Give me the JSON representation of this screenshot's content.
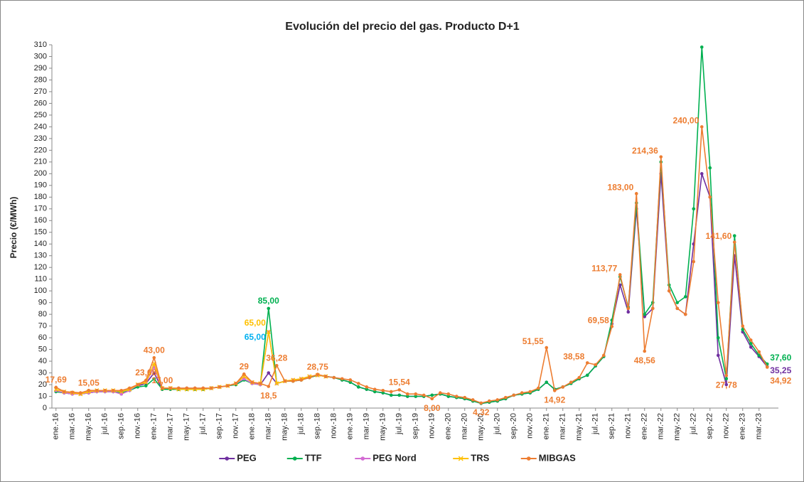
{
  "chart_data": {
    "type": "line",
    "title": "Evolución del precio del gas. Producto D+1",
    "y_label": "Precio (€/MWh)",
    "legend": "bottom",
    "grid": false,
    "ylim": [
      0,
      310
    ],
    "yticks": [
      0,
      10,
      20,
      30,
      40,
      50,
      60,
      70,
      80,
      90,
      100,
      110,
      120,
      130,
      140,
      150,
      160,
      170,
      180,
      190,
      200,
      210,
      220,
      230,
      240,
      250,
      260,
      270,
      280,
      290,
      300,
      310
    ],
    "categories": [
      "ene.-16",
      null,
      "mar.-16",
      null,
      "may.-16",
      null,
      "jul.-16",
      null,
      "sep.-16",
      null,
      "nov.-16",
      null,
      "ene.-17",
      null,
      "mar.-17",
      null,
      "may.-17",
      null,
      "jul.-17",
      null,
      "sep.-17",
      null,
      "nov.-17",
      null,
      "ene.-18",
      null,
      "mar.-18",
      null,
      "may.-18",
      null,
      "jul.-18",
      null,
      "sep.-18",
      null,
      "nov.-18",
      null,
      "ene.-19",
      null,
      "mar.-19",
      null,
      "may.-19",
      null,
      "jul.-19",
      null,
      "sep.-19",
      null,
      "nov.-19",
      null,
      "ene.-20",
      null,
      "mar.-20",
      null,
      "may.-20",
      null,
      "jul.-20",
      null,
      "sep.-20",
      null,
      "nov.-20",
      null,
      "ene.-21",
      null,
      "mar.-21",
      null,
      "may.-21",
      null,
      "jul.-21",
      null,
      "sep.-21",
      null,
      "nov.-21",
      null,
      "ene.-22",
      null,
      "mar.-22",
      null,
      "may.-22",
      null,
      "jul.-22",
      null,
      "sep.-22",
      null,
      "nov.-22",
      null,
      "ene.-23",
      null,
      "mar.-23",
      null
    ],
    "series": [
      {
        "name": "PEG",
        "color": "#7030a0",
        "marker": "circle",
        "values": [
          14,
          13,
          12,
          12,
          13,
          14,
          14,
          14,
          12,
          15,
          19,
          21,
          30,
          16,
          16,
          16,
          16,
          16,
          16,
          17,
          18,
          19,
          20,
          25,
          21,
          20,
          30,
          21,
          23,
          23,
          24,
          26,
          28,
          27,
          26,
          24,
          22,
          18,
          16,
          14,
          13,
          11,
          11,
          10,
          10,
          10,
          11,
          12,
          10,
          9,
          8,
          6,
          4,
          5,
          6,
          8,
          11,
          12,
          13,
          16,
          22,
          16,
          18,
          21,
          25,
          28,
          36,
          44,
          72,
          105,
          82,
          170,
          78,
          85,
          200,
          100,
          85,
          80,
          140,
          200,
          180,
          45,
          20,
          130,
          65,
          52,
          44,
          35.25
        ],
        "value_labels": [
          null,
          null,
          null,
          null,
          null,
          null,
          null,
          null,
          null,
          null,
          null,
          null,
          null,
          null,
          null,
          null,
          null,
          null,
          null,
          null,
          null,
          null,
          null,
          null,
          null,
          null,
          null,
          null,
          null,
          null,
          null,
          null,
          null,
          null,
          null,
          null,
          null,
          null,
          null,
          null,
          null,
          null,
          null,
          null,
          null,
          null,
          null,
          null,
          null,
          null,
          null,
          null,
          null,
          null,
          null,
          null,
          null,
          null,
          null,
          null,
          null,
          null,
          null,
          null,
          null,
          null,
          null,
          null,
          null,
          null,
          null,
          null,
          null,
          null,
          null,
          null,
          null,
          null,
          null,
          null,
          null,
          null,
          null,
          null,
          null,
          null,
          null,
          "35,25"
        ]
      },
      {
        "name": "TTF",
        "color": "#00b050",
        "marker": "circle",
        "values": [
          14,
          13,
          12,
          12,
          13,
          14,
          14,
          14,
          13,
          15,
          18,
          19,
          25,
          16,
          16,
          16,
          16,
          16,
          16,
          17,
          18,
          19,
          20,
          24,
          21,
          20,
          85,
          21,
          23,
          23,
          24,
          26,
          28,
          27,
          26,
          24,
          22,
          18,
          16,
          14,
          13,
          11,
          11,
          10,
          10,
          10,
          11,
          12,
          10,
          9,
          8,
          6,
          4,
          5,
          6,
          8,
          11,
          12,
          13,
          16,
          22,
          16,
          18,
          21,
          25,
          28,
          36,
          44,
          75,
          112,
          86,
          175,
          80,
          90,
          210,
          105,
          90,
          95,
          170,
          308,
          205,
          60,
          25,
          147,
          67,
          55,
          45,
          37.6
        ],
        "value_labels": [
          null,
          null,
          null,
          null,
          null,
          null,
          null,
          null,
          null,
          null,
          null,
          null,
          null,
          null,
          null,
          null,
          null,
          null,
          null,
          null,
          null,
          null,
          null,
          null,
          null,
          null,
          "85,00",
          null,
          null,
          null,
          null,
          null,
          null,
          null,
          null,
          null,
          null,
          null,
          null,
          null,
          null,
          null,
          null,
          null,
          null,
          null,
          null,
          null,
          null,
          null,
          null,
          null,
          null,
          null,
          null,
          null,
          null,
          null,
          null,
          null,
          null,
          null,
          null,
          null,
          null,
          null,
          null,
          null,
          null,
          null,
          null,
          null,
          null,
          null,
          null,
          null,
          null,
          null,
          null,
          null,
          null,
          null,
          null,
          null,
          null,
          null,
          null,
          "37,60"
        ]
      },
      {
        "name": "PEG Nord",
        "color": "#d36bd3",
        "label_color": "#00b0f0",
        "marker": "circle",
        "values": [
          15,
          13,
          12,
          12,
          13,
          14,
          14,
          14,
          12,
          15,
          20,
          22,
          35,
          17,
          17,
          17,
          17,
          17,
          17,
          17,
          18,
          19,
          21,
          25,
          21,
          20,
          65,
          21,
          23,
          24,
          25,
          27,
          28,
          27,
          null,
          null,
          null,
          null,
          null,
          null,
          null,
          null,
          null,
          null,
          null,
          null,
          null,
          null,
          null,
          null,
          null,
          null,
          null,
          null,
          null,
          null,
          null,
          null,
          null,
          null,
          null,
          null,
          null,
          null,
          null,
          null,
          null,
          null,
          null,
          null,
          null,
          null,
          null,
          null,
          null,
          null,
          null,
          null,
          null,
          null,
          null,
          null,
          null,
          null,
          null,
          null,
          null,
          null
        ],
        "value_labels": [
          null,
          null,
          null,
          null,
          null,
          null,
          null,
          null,
          null,
          null,
          null,
          null,
          null,
          null,
          null,
          null,
          null,
          null,
          null,
          null,
          null,
          null,
          null,
          null,
          null,
          null,
          "65,00",
          null,
          null,
          null,
          null,
          null,
          null,
          null,
          null,
          null,
          null,
          null,
          null,
          null,
          null,
          null,
          null,
          null,
          null,
          null,
          null,
          null,
          null,
          null,
          null,
          null,
          null,
          null,
          null,
          null,
          null,
          null,
          null,
          null,
          null,
          null,
          null,
          null,
          null,
          null,
          null,
          null,
          null,
          null,
          null,
          null,
          null,
          null,
          null,
          null,
          null,
          null,
          null,
          null,
          null,
          null,
          null,
          null,
          null,
          null,
          null,
          null
        ]
      },
      {
        "name": "TRS",
        "color": "#ffc000",
        "marker": "x",
        "values": [
          16,
          14,
          13,
          12,
          14,
          15,
          15,
          15,
          14,
          16,
          20,
          22,
          38,
          17,
          17,
          16,
          16,
          16,
          16,
          17,
          18,
          19,
          21,
          27,
          22,
          21,
          65,
          21,
          23,
          24,
          25,
          27,
          28,
          27,
          null,
          null,
          null,
          null,
          null,
          null,
          null,
          null,
          null,
          null,
          null,
          null,
          null,
          null,
          null,
          null,
          null,
          null,
          null,
          null,
          null,
          null,
          null,
          null,
          null,
          null,
          null,
          null,
          null,
          null,
          null,
          null,
          null,
          null,
          null,
          null,
          null,
          null,
          null,
          null,
          null,
          null,
          null,
          null,
          null,
          null,
          null,
          null,
          null,
          null,
          null,
          null,
          null,
          null
        ],
        "value_labels": [
          null,
          null,
          null,
          null,
          null,
          null,
          null,
          null,
          null,
          null,
          null,
          null,
          null,
          null,
          null,
          null,
          null,
          null,
          null,
          null,
          null,
          null,
          null,
          null,
          null,
          null,
          "65,00",
          null,
          null,
          null,
          null,
          null,
          null,
          null,
          null,
          null,
          null,
          null,
          null,
          null,
          null,
          null,
          null,
          null,
          null,
          null,
          null,
          null,
          null,
          null,
          null,
          null,
          null,
          null,
          null,
          null,
          null,
          null,
          null,
          null,
          null,
          null,
          null,
          null,
          null,
          null,
          null,
          null,
          null,
          null,
          null,
          null,
          null,
          null,
          null,
          null,
          null,
          null,
          null,
          null,
          null,
          null,
          null,
          null,
          null,
          null,
          null,
          null
        ]
      },
      {
        "name": "MIBGAS",
        "color": "#ed7d31",
        "marker": "circle",
        "values": [
          17.69,
          14,
          13.5,
          13,
          15.05,
          15,
          15,
          15,
          15,
          17,
          20,
          23.68,
          43,
          17,
          17,
          17,
          17,
          17,
          17,
          17,
          18,
          19,
          21,
          29,
          22,
          21,
          18.5,
          36.28,
          23,
          23,
          24,
          26,
          28.75,
          27,
          26,
          25,
          24,
          21,
          18,
          16,
          15,
          14,
          15.54,
          12,
          12,
          11,
          8,
          13,
          12,
          10,
          9,
          7,
          4.32,
          6,
          7,
          9,
          11,
          13,
          14,
          17,
          51.55,
          14.92,
          18,
          22,
          26,
          38.58,
          37,
          45,
          69.58,
          113.77,
          85,
          183,
          48.56,
          85,
          214.36,
          100,
          85,
          80,
          125,
          240,
          180,
          90,
          27.78,
          141.6,
          70,
          58,
          48,
          34.92
        ],
        "value_labels": [
          "17,69",
          null,
          null,
          null,
          "15,05",
          null,
          null,
          null,
          null,
          null,
          null,
          "23,68",
          "43,00",
          "17,00",
          null,
          null,
          null,
          null,
          null,
          null,
          null,
          null,
          null,
          "29",
          null,
          null,
          "18,5",
          "36,28",
          null,
          null,
          null,
          null,
          "28,75",
          null,
          null,
          null,
          null,
          null,
          null,
          null,
          null,
          null,
          "15,54",
          null,
          null,
          null,
          "8,00",
          null,
          null,
          null,
          null,
          null,
          "4,32",
          null,
          null,
          null,
          null,
          null,
          null,
          null,
          "51,55",
          "14,92",
          null,
          null,
          null,
          "38,58",
          null,
          null,
          "69,58",
          "113,77",
          null,
          "183,00",
          "48,56",
          null,
          "214,36",
          null,
          null,
          null,
          null,
          "240,00",
          null,
          null,
          "27,78",
          "141,60",
          null,
          null,
          null,
          "34,92"
        ]
      }
    ]
  }
}
